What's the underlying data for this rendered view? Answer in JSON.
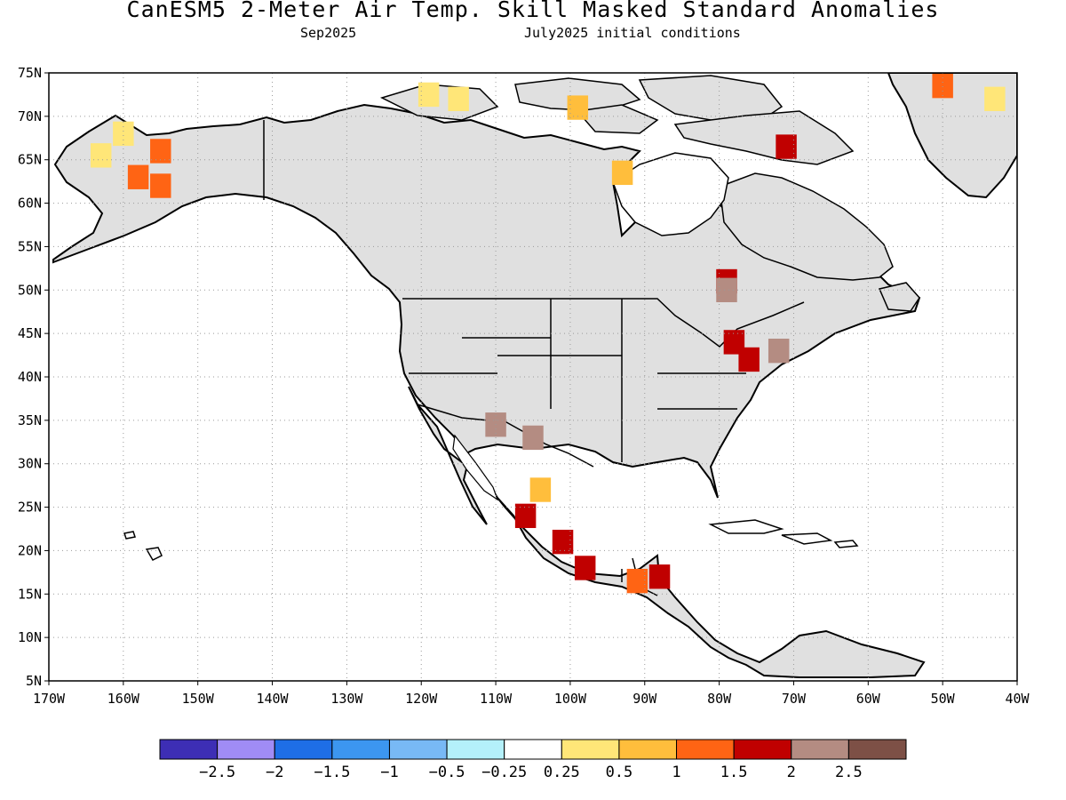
{
  "title": "CanESM5 2-Meter Air Temp. Skill Masked Standard Anomalies",
  "subtitle_left": "Sep2025",
  "subtitle_right": "July2025 initial conditions",
  "map": {
    "lon_range": [
      -170,
      -40
    ],
    "lat_range": [
      5,
      75
    ],
    "lon_ticks": [
      "170W",
      "160W",
      "150W",
      "140W",
      "130W",
      "120W",
      "110W",
      "100W",
      "90W",
      "80W",
      "70W",
      "60W",
      "50W",
      "40W"
    ],
    "lat_ticks": [
      "5N",
      "10N",
      "15N",
      "20N",
      "25N",
      "30N",
      "35N",
      "40N",
      "45N",
      "50N",
      "55N",
      "60N",
      "65N",
      "70N",
      "75N"
    ],
    "grid": true,
    "skill_mask_color": "#e0e0e0"
  },
  "colorbar": {
    "colors": [
      "#3d2eb5",
      "#a08cf5",
      "#1e6ee6",
      "#3c96f0",
      "#78b9f5",
      "#b4f0fa",
      "#ffffff",
      "#ffe678",
      "#ffbe3c",
      "#ff6414",
      "#c00000",
      "#b48c82",
      "#7d5046"
    ],
    "labels": [
      "−2.5",
      "−2",
      "−1.5",
      "−1",
      "−0.5",
      "−0.25",
      "0.25",
      "0.5",
      "1",
      "1.5",
      "2",
      "2.5"
    ]
  },
  "anomaly_cells": [
    {
      "lon": -163,
      "lat": 65.5,
      "level": 0.5
    },
    {
      "lon": -160,
      "lat": 68,
      "level": 0.5
    },
    {
      "lon": -155,
      "lat": 66,
      "level": 1.5
    },
    {
      "lon": -158,
      "lat": 63,
      "level": 1.5
    },
    {
      "lon": -155,
      "lat": 62,
      "level": 1.5
    },
    {
      "lon": -119,
      "lat": 72.5,
      "level": 0.5
    },
    {
      "lon": -115,
      "lat": 72,
      "level": 0.5
    },
    {
      "lon": -99,
      "lat": 71,
      "level": 1
    },
    {
      "lon": -93,
      "lat": 63.5,
      "level": 1
    },
    {
      "lon": -79,
      "lat": 51,
      "level": 2
    },
    {
      "lon": -79,
      "lat": 50,
      "level": 2.5
    },
    {
      "lon": -78,
      "lat": 44,
      "level": 2
    },
    {
      "lon": -76,
      "lat": 42,
      "level": 2
    },
    {
      "lon": -72,
      "lat": 43,
      "level": 2.5
    },
    {
      "lon": -71,
      "lat": 66.5,
      "level": 2
    },
    {
      "lon": -106,
      "lat": 24,
      "level": 2
    },
    {
      "lon": -104,
      "lat": 27,
      "level": 1
    },
    {
      "lon": -101,
      "lat": 21,
      "level": 2
    },
    {
      "lon": -98,
      "lat": 18,
      "level": 2
    },
    {
      "lon": -91,
      "lat": 16.5,
      "level": 1.5
    },
    {
      "lon": -88,
      "lat": 17,
      "level": 2
    },
    {
      "lon": -110,
      "lat": 34.5,
      "level": 2.5
    },
    {
      "lon": -105,
      "lat": 33,
      "level": 2.5
    },
    {
      "lon": -50,
      "lat": 73.5,
      "level": 1.5
    },
    {
      "lon": -43,
      "lat": 72,
      "level": 0.5
    }
  ]
}
